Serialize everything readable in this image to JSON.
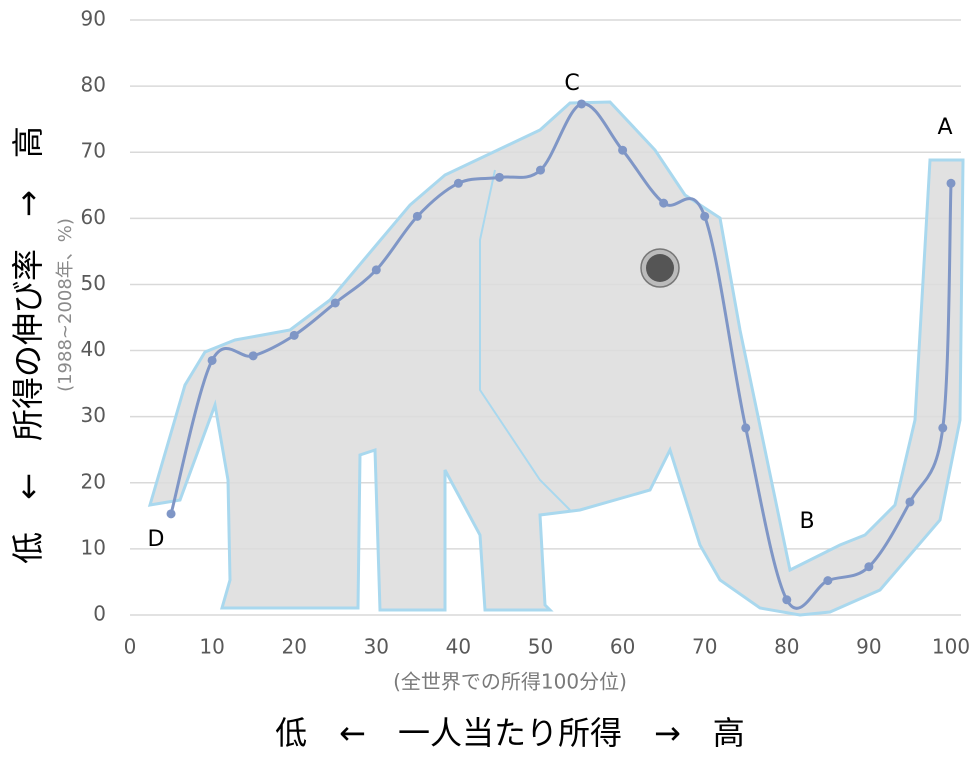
{
  "chart_data": {
    "type": "line",
    "y_label": "低　←　所得の伸び率　→　高",
    "y_sublabel": "(1988~2008年、%)",
    "x_sublabel": "(全世界での所得100分位)",
    "x_label": "低　←　一人当たり所得　→　高",
    "annotations": [
      "A",
      "B",
      "C",
      "D"
    ],
    "grid": true,
    "xlim": [
      0,
      100
    ],
    "xticks": [
      0,
      10,
      20,
      30,
      40,
      50,
      60,
      70,
      80,
      90,
      100
    ],
    "ylim": [
      0,
      90
    ],
    "yticks": [
      0,
      10,
      20,
      30,
      40,
      50,
      60,
      70,
      80,
      90
    ],
    "series": [
      {
        "color": "#7f96c6",
        "x": [
          5,
          10,
          15,
          20,
          25,
          30,
          35,
          40,
          45,
          50,
          55,
          60,
          65,
          70,
          75,
          80,
          85,
          90,
          95,
          99,
          100
        ],
        "values": [
          15.3,
          38.5,
          39.2,
          42.3,
          47.2,
          52.2,
          60.3,
          65.3,
          66.2,
          67.3,
          77.3,
          70.3,
          62.3,
          60.3,
          28.3,
          2.3,
          5.2,
          7.3,
          17.1,
          28.3,
          65.3
        ]
      }
    ]
  }
}
